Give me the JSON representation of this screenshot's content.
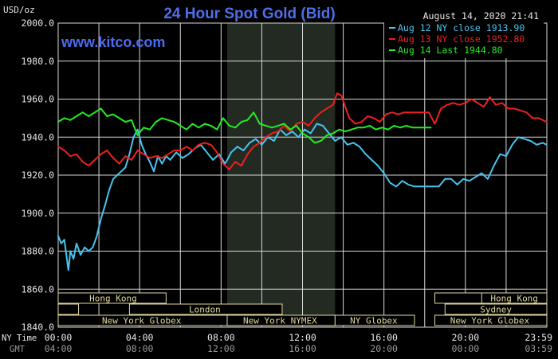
{
  "header": {
    "unit": "USD/oz",
    "title": "24 Hour Spot Gold (Bid)",
    "timestamp": "August 14, 2020 21:41",
    "watermark": "www.kitco.com"
  },
  "legend": [
    {
      "text": "Aug 12 NY close 1913.90",
      "color": "#47c5f0"
    },
    {
      "text": "Aug 13 NY close 1952.80",
      "color": "#ee2020"
    },
    {
      "text": "Aug 14 Last 1944.80",
      "color": "#22ee22"
    }
  ],
  "axis_labels": {
    "ny_time": "NY Time",
    "gmt": "GMT"
  },
  "sessions": {
    "hong_kong": "Hong Kong",
    "london": "London",
    "ny_globex": "New York Globex",
    "ny_nymex": "New York NYMEX",
    "ny_globex_short": "NY Globex",
    "sydney": "Sydney"
  },
  "colors": {
    "background": "#000000",
    "plot_bg": "#000000",
    "shaded_region": "#222a22",
    "grid": "#d8d8d8",
    "title": "#4f6fe8",
    "watermark": "#4a6cf0",
    "text": "#e8e8e8",
    "session_border": "#e0d8a0",
    "session_text": "#e0d8a0",
    "gmt_text": "#9a9a9a"
  },
  "chart_data": {
    "type": "line",
    "title": "24 Hour Spot Gold (Bid)",
    "ylabel": "USD/oz",
    "xlabel": "NY Time",
    "ylim": [
      1840,
      2000
    ],
    "xlim": [
      0,
      24
    ],
    "y_ticks": [
      "2000.0",
      "1980.0",
      "1960.0",
      "1940.0",
      "1920.0",
      "1900.0",
      "1880.0",
      "1860.0",
      "1840.0"
    ],
    "y_tick_values": [
      2000,
      1980,
      1960,
      1940,
      1920,
      1900,
      1880,
      1860,
      1840
    ],
    "x_ticks_ny": [
      "00:00",
      "04:00",
      "08:00",
      "12:00",
      "16:00",
      "20:00",
      "23:59"
    ],
    "x_ticks_gmt": [
      "04:00",
      "08:00",
      "12:00",
      "16:00",
      "20:00",
      "00:00",
      "03:59"
    ],
    "x_tick_values": [
      0,
      4,
      8,
      12,
      16,
      20,
      23.98
    ],
    "shaded_hours": [
      8.3,
      13.6
    ],
    "grid": true,
    "legend_position": "top-right",
    "series": [
      {
        "name": "Aug 12 NY close 1913.90",
        "color": "#47c5f0",
        "x": [
          0,
          0.15,
          0.3,
          0.5,
          0.6,
          0.75,
          0.9,
          1.1,
          1.3,
          1.5,
          1.7,
          1.9,
          2.1,
          2.3,
          2.5,
          2.7,
          2.9,
          3.1,
          3.3,
          3.5,
          3.7,
          3.9,
          4.1,
          4.3,
          4.5,
          4.7,
          4.9,
          5.1,
          5.3,
          5.5,
          5.8,
          6.1,
          6.4,
          6.7,
          7.0,
          7.3,
          7.6,
          7.9,
          8.2,
          8.5,
          8.8,
          9.1,
          9.4,
          9.7,
          10.0,
          10.3,
          10.6,
          10.9,
          11.2,
          11.5,
          11.8,
          12.1,
          12.4,
          12.7,
          13.0,
          13.3,
          13.6,
          13.9,
          14.2,
          14.5,
          14.8,
          15.1,
          15.4,
          15.7,
          16.0,
          16.3,
          16.6,
          16.9,
          17.2,
          17.5,
          17.8,
          18.1,
          18.4,
          18.7,
          19.0,
          19.3,
          19.6,
          19.9,
          20.2,
          20.5,
          20.8,
          21.1,
          21.4,
          21.7,
          22.0,
          22.3,
          22.6,
          22.9,
          23.2,
          23.5,
          23.8,
          23.98
        ],
        "values": [
          1888,
          1884,
          1886,
          1870,
          1880,
          1876,
          1884,
          1878,
          1882,
          1880,
          1882,
          1888,
          1897,
          1904,
          1912,
          1918,
          1920,
          1922,
          1924,
          1931,
          1940,
          1944,
          1936,
          1931,
          1927,
          1922,
          1930,
          1926,
          1930,
          1928,
          1932,
          1929,
          1931,
          1934,
          1936,
          1932,
          1928,
          1931,
          1926,
          1932,
          1935,
          1933,
          1937,
          1939,
          1936,
          1940,
          1938,
          1944,
          1941,
          1943,
          1940,
          1944,
          1942,
          1947,
          1946,
          1942,
          1938,
          1940,
          1936,
          1937,
          1935,
          1931,
          1928,
          1925,
          1921,
          1916,
          1914,
          1917,
          1915,
          1914,
          1914,
          1914,
          1914,
          1914,
          1918,
          1918,
          1915,
          1918,
          1917,
          1919,
          1921,
          1918,
          1925,
          1931,
          1930,
          1936,
          1940,
          1939,
          1938,
          1936,
          1937,
          1936
        ]
      },
      {
        "name": "Aug 13 NY close 1952.80",
        "color": "#ee2020",
        "x": [
          0,
          0.3,
          0.6,
          0.9,
          1.2,
          1.5,
          1.8,
          2.1,
          2.4,
          2.7,
          3.0,
          3.3,
          3.6,
          3.9,
          4.2,
          4.5,
          4.8,
          5.1,
          5.4,
          5.7,
          6.0,
          6.3,
          6.6,
          6.9,
          7.2,
          7.5,
          7.8,
          8.1,
          8.4,
          8.7,
          9.0,
          9.3,
          9.6,
          9.9,
          10.2,
          10.5,
          10.8,
          11.1,
          11.4,
          11.7,
          12.0,
          12.3,
          12.6,
          12.9,
          13.2,
          13.5,
          13.7,
          13.9,
          14.1,
          14.3,
          14.6,
          14.9,
          15.2,
          15.5,
          15.8,
          16.1,
          16.4,
          16.7,
          17.0,
          17.3,
          17.6,
          17.9,
          18.2,
          18.5,
          18.8,
          19.1,
          19.4,
          19.7,
          20.0,
          20.3,
          20.6,
          20.9,
          21.2,
          21.5,
          21.8,
          22.1,
          22.4,
          22.7,
          23.0,
          23.3,
          23.6,
          23.98
        ],
        "values": [
          1935,
          1933,
          1930,
          1931,
          1927,
          1925,
          1928,
          1931,
          1933,
          1929,
          1926,
          1930,
          1928,
          1933,
          1931,
          1929,
          1930,
          1929,
          1931,
          1933,
          1933,
          1935,
          1933,
          1936,
          1937,
          1936,
          1932,
          1926,
          1923,
          1927,
          1925,
          1931,
          1935,
          1937,
          1940,
          1942,
          1943,
          1946,
          1943,
          1947,
          1948,
          1946,
          1950,
          1953,
          1955,
          1957,
          1963,
          1962,
          1956,
          1950,
          1947,
          1948,
          1951,
          1950,
          1948,
          1952,
          1953,
          1952,
          1953,
          1953,
          1953,
          1953,
          1953,
          1947,
          1955,
          1957,
          1958,
          1957,
          1958,
          1960,
          1958,
          1956,
          1961,
          1957,
          1958,
          1955,
          1955,
          1954,
          1953,
          1950,
          1950,
          1948
        ]
      },
      {
        "name": "Aug 14 Last 1944.80",
        "color": "#22ee22",
        "x": [
          0,
          0.3,
          0.6,
          0.9,
          1.2,
          1.5,
          1.8,
          2.1,
          2.4,
          2.7,
          3.0,
          3.3,
          3.6,
          3.9,
          4.2,
          4.5,
          4.8,
          5.1,
          5.4,
          5.7,
          6.0,
          6.3,
          6.6,
          6.9,
          7.2,
          7.5,
          7.8,
          8.1,
          8.4,
          8.7,
          9.0,
          9.3,
          9.6,
          9.9,
          10.2,
          10.5,
          10.8,
          11.1,
          11.4,
          11.7,
          12.0,
          12.3,
          12.6,
          12.9,
          13.2,
          13.5,
          13.8,
          14.1,
          14.4,
          14.7,
          15.0,
          15.3,
          15.6,
          15.9,
          16.2,
          16.5,
          16.8,
          17.1,
          17.4,
          17.7,
          18.0,
          18.3
        ],
        "values": [
          1948,
          1950,
          1949,
          1951,
          1953,
          1951,
          1953,
          1955,
          1951,
          1952,
          1950,
          1948,
          1949,
          1941,
          1945,
          1944,
          1948,
          1950,
          1949,
          1948,
          1946,
          1944,
          1947,
          1945,
          1947,
          1946,
          1944,
          1950,
          1946,
          1945,
          1948,
          1949,
          1953,
          1947,
          1946,
          1945,
          1946,
          1947,
          1944,
          1946,
          1942,
          1940,
          1937,
          1938,
          1941,
          1942,
          1944,
          1943,
          1944,
          1945,
          1945,
          1946,
          1944,
          1945,
          1944,
          1946,
          1945,
          1946,
          1945,
          1945,
          1945,
          1945
        ]
      }
    ]
  }
}
